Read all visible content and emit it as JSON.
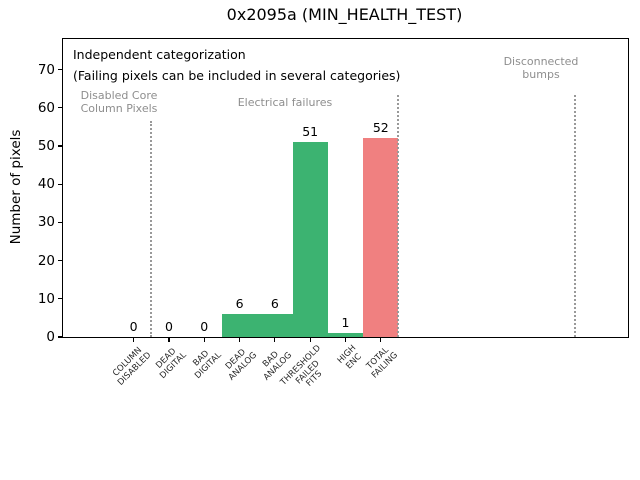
{
  "chart_data": {
    "type": "bar",
    "title": "0x2095a (MIN_HEALTH_TEST)",
    "ylabel": "Number of pixels",
    "xlabel": "",
    "categories": [
      "COLUMN\nDISABLED",
      "DEAD\nDIGITAL",
      "BAD\nDIGITAL",
      "DEAD\nANALOG",
      "BAD\nANALOG",
      "THRESHOLD\nFAILED\nFITS",
      "HIGH\nENC",
      "TOTAL\nFAILING"
    ],
    "values": [
      0,
      0,
      0,
      6,
      6,
      51,
      1,
      52
    ],
    "bar_colors": [
      "#3cb371",
      "#3cb371",
      "#3cb371",
      "#3cb371",
      "#3cb371",
      "#3cb371",
      "#3cb371",
      "#f08080"
    ],
    "bar_width": 1.0,
    "yticks": [
      0,
      10,
      20,
      30,
      40,
      50,
      60,
      70
    ],
    "ylim": [
      0,
      78
    ],
    "xlim": [
      -2,
      14
    ],
    "grid": false,
    "legend": "none",
    "notes": {
      "heading": "Independent categorization",
      "subheading": "(Failing pixels can be included in several categories)"
    },
    "section_labels": [
      {
        "label": "Disabled Core\nColumn Pixels",
        "color": "#8e8e8e"
      },
      {
        "label": "Electrical failures",
        "color": "#8e8e8e"
      },
      {
        "label": "Disconnected\nbumps",
        "color": "#8e8e8e"
      }
    ],
    "section_dividers_x": [
      0.5,
      7.5,
      12.5
    ],
    "colors": {
      "bar_green": "#3cb371",
      "bar_red": "#f08080",
      "section_label_gray": "#8e8e8e",
      "divider_gray": "#999999"
    }
  }
}
